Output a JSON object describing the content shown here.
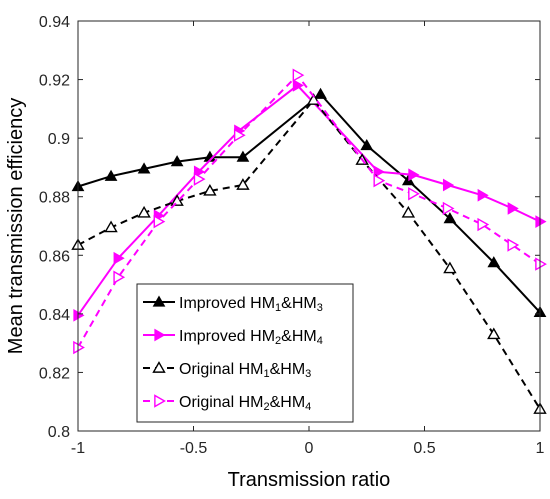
{
  "chart_data": {
    "type": "line",
    "title": "",
    "xlabel": "Transmission ratio",
    "ylabel": "Mean transmission efficiency",
    "xlim": [
      -1,
      1
    ],
    "ylim": [
      0.8,
      0.94
    ],
    "xticks": [
      -1,
      -0.5,
      0,
      0.5,
      1
    ],
    "xtick_labels": [
      "-1",
      "-0.5",
      "0",
      "0.5",
      "1"
    ],
    "yticks": [
      0.8,
      0.82,
      0.84,
      0.86,
      0.88,
      0.9,
      0.92,
      0.94
    ],
    "ytick_labels": [
      "0.8",
      "0.82",
      "0.84",
      "0.86",
      "0.88",
      "0.9",
      "0.92",
      "0.94"
    ],
    "grid": false,
    "legend_position": "bottom-left",
    "series": [
      {
        "name": "Improved HM1&HM3",
        "legend": {
          "pre": "Improved HM",
          "sub1": "1",
          "mid": "&HM",
          "sub2": "3"
        },
        "color": "#000000",
        "style": "solid",
        "marker": "triangle-up",
        "x": [
          -1,
          -0.857,
          -0.714,
          -0.571,
          -0.429,
          -0.286,
          0.05,
          0.25,
          0.43,
          0.61,
          0.8,
          1.0
        ],
        "y": [
          0.8835,
          0.887,
          0.8895,
          0.892,
          0.8935,
          0.8935,
          0.915,
          0.8975,
          0.8855,
          0.8725,
          0.8575,
          0.8405
        ]
      },
      {
        "name": "Improved HM2&HM4",
        "legend": {
          "pre": "Improved HM",
          "sub1": "2",
          "mid": "&HM",
          "sub2": "4"
        },
        "color": "#ff00ff",
        "style": "solid",
        "marker": "triangle-right",
        "x": [
          -1,
          -0.826,
          -0.652,
          -0.478,
          -0.304,
          -0.05,
          0.3,
          0.45,
          0.6,
          0.75,
          0.88,
          1.0
        ],
        "y": [
          0.8395,
          0.859,
          0.8735,
          0.8885,
          0.9025,
          0.918,
          0.8885,
          0.8875,
          0.884,
          0.8805,
          0.876,
          0.8715
        ]
      },
      {
        "name": "Original HM1&HM3",
        "legend": {
          "pre": "Original HM",
          "sub1": "1",
          "mid": "&HM",
          "sub2": "3"
        },
        "color": "#000000",
        "style": "dashed",
        "marker": "triangle-up-open",
        "x": [
          -1,
          -0.857,
          -0.714,
          -0.571,
          -0.429,
          -0.286,
          0.02,
          0.23,
          0.43,
          0.61,
          0.8,
          1.0
        ],
        "y": [
          0.8635,
          0.8695,
          0.8745,
          0.8785,
          0.882,
          0.884,
          0.913,
          0.8925,
          0.8745,
          0.8555,
          0.833,
          0.8075
        ]
      },
      {
        "name": "Original HM2&HM4",
        "legend": {
          "pre": "Original HM",
          "sub1": "2",
          "mid": "&HM",
          "sub2": "4"
        },
        "color": "#ff00ff",
        "style": "dashed",
        "marker": "triangle-right-open",
        "x": [
          -1,
          -0.826,
          -0.652,
          -0.478,
          -0.304,
          -0.05,
          0.3,
          0.45,
          0.6,
          0.75,
          0.88,
          1.0
        ],
        "y": [
          0.8285,
          0.8525,
          0.8715,
          0.886,
          0.901,
          0.9215,
          0.8855,
          0.881,
          0.876,
          0.8705,
          0.8635,
          0.857
        ]
      }
    ]
  }
}
